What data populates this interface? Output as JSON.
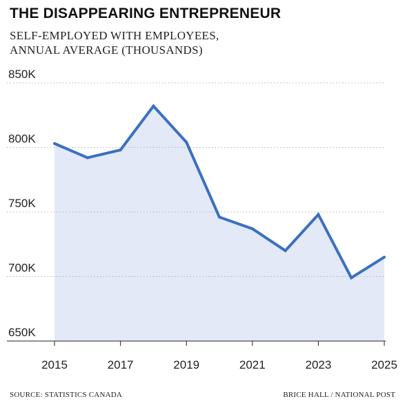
{
  "chart_data": {
    "type": "area",
    "title": "THE DISAPPEARING ENTREPRENEUR",
    "subtitle_lines": [
      "SELF-EMPLOYED WITH EMPLOYEES,",
      "ANNUAL AVERAGE (THOUSANDS)"
    ],
    "x": [
      2015,
      2016,
      2017,
      2018,
      2019,
      2020,
      2021,
      2022,
      2023,
      2024,
      2025
    ],
    "values": [
      803,
      792,
      798,
      832,
      804,
      746,
      737,
      720,
      748,
      699,
      715
    ],
    "xticks": [
      "2015",
      "2017",
      "2019",
      "2021",
      "2023",
      "2025"
    ],
    "yticks": [
      {
        "value": 850,
        "label": "850K"
      },
      {
        "value": 800,
        "label": "800K"
      },
      {
        "value": 750,
        "label": "750K"
      },
      {
        "value": 700,
        "label": "700K"
      },
      {
        "value": 650,
        "label": "650K"
      }
    ],
    "ylim": [
      650,
      850
    ],
    "xlim": [
      2015,
      2025
    ],
    "grid": true,
    "colors": {
      "line": "#3b70c0",
      "fill": "#e3e9f7",
      "grid": "#b5b5b5",
      "axis": "#222222"
    }
  },
  "footer": {
    "source": "SOURCE: STATISTICS CANADA",
    "credit": "BRICE HALL / NATIONAL POST"
  }
}
